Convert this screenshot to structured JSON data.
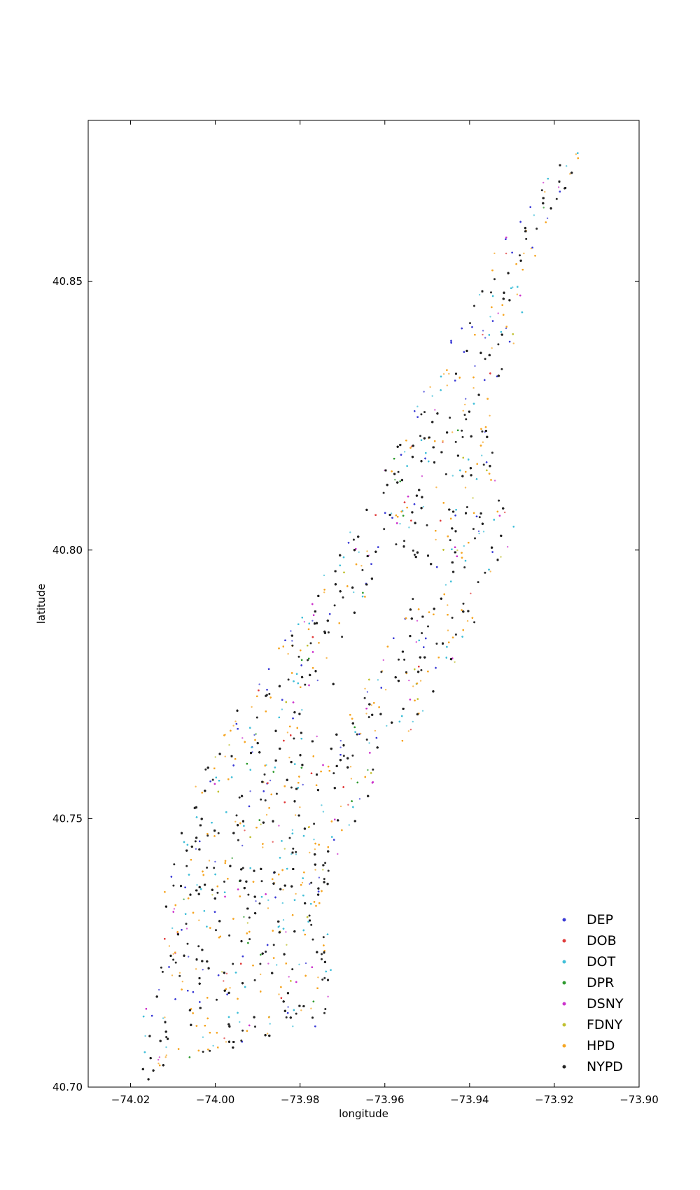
{
  "chart_data": {
    "type": "scatter",
    "xlabel": "longitude",
    "ylabel": "latitude",
    "xlim": [
      -74.03,
      -73.9
    ],
    "ylim": [
      40.7,
      40.88
    ],
    "x_ticks": [
      -74.02,
      -74.0,
      -73.98,
      -73.96,
      -73.94,
      -73.92,
      -73.9
    ],
    "x_tick_labels": [
      "−74.02",
      "−74.00",
      "−73.98",
      "−73.96",
      "−73.94",
      "−73.92",
      "−73.90"
    ],
    "y_ticks": [
      40.7,
      40.75,
      40.8,
      40.85
    ],
    "y_tick_labels": [
      "40.70",
      "40.75",
      "40.80",
      "40.85"
    ],
    "grid": false,
    "legend_position": "bottom-right",
    "series": [
      {
        "name": "DEP",
        "color": "#3b3bd6",
        "weight": 0.09
      },
      {
        "name": "DOB",
        "color": "#e03b3b",
        "weight": 0.03
      },
      {
        "name": "DOT",
        "color": "#40bfd8",
        "weight": 0.13
      },
      {
        "name": "DPR",
        "color": "#2e9a2e",
        "weight": 0.03
      },
      {
        "name": "DSNY",
        "color": "#cc33cc",
        "weight": 0.06
      },
      {
        "name": "FDNY",
        "color": "#c0c030",
        "weight": 0.03
      },
      {
        "name": "HPD",
        "color": "#f5a623",
        "weight": 0.23
      },
      {
        "name": "NYPD",
        "color": "#222222",
        "weight": 0.4
      }
    ],
    "region_outline": [
      [
        -74.016,
        40.701
      ],
      [
        -74.007,
        40.703
      ],
      [
        -73.998,
        40.707
      ],
      [
        -73.974,
        40.711
      ],
      [
        -73.972,
        40.725
      ],
      [
        -73.975,
        40.733
      ],
      [
        -73.972,
        40.742
      ],
      [
        -73.962,
        40.757
      ],
      [
        -73.946,
        40.775
      ],
      [
        -73.939,
        40.786
      ],
      [
        -73.933,
        40.797
      ],
      [
        -73.929,
        40.803
      ],
      [
        -73.934,
        40.815
      ],
      [
        -73.934,
        40.83
      ],
      [
        -73.926,
        40.845
      ],
      [
        -73.925,
        40.852
      ],
      [
        -73.921,
        40.862
      ],
      [
        -73.911,
        40.876
      ],
      [
        -73.908,
        40.878
      ],
      [
        -73.918,
        40.873
      ],
      [
        -73.932,
        40.86
      ],
      [
        -73.938,
        40.848
      ],
      [
        -73.948,
        40.835
      ],
      [
        -73.959,
        40.818
      ],
      [
        -73.971,
        40.8
      ],
      [
        -73.985,
        40.782
      ],
      [
        -73.995,
        40.771
      ],
      [
        -74.003,
        40.76
      ],
      [
        -74.008,
        40.748
      ],
      [
        -74.012,
        40.738
      ],
      [
        -74.013,
        40.72
      ],
      [
        -74.018,
        40.712
      ],
      [
        -74.018,
        40.704
      ]
    ],
    "park_outline": [
      [
        -73.981,
        40.768
      ],
      [
        -73.973,
        40.764
      ],
      [
        -73.949,
        40.797
      ],
      [
        -73.958,
        40.8
      ]
    ]
  }
}
